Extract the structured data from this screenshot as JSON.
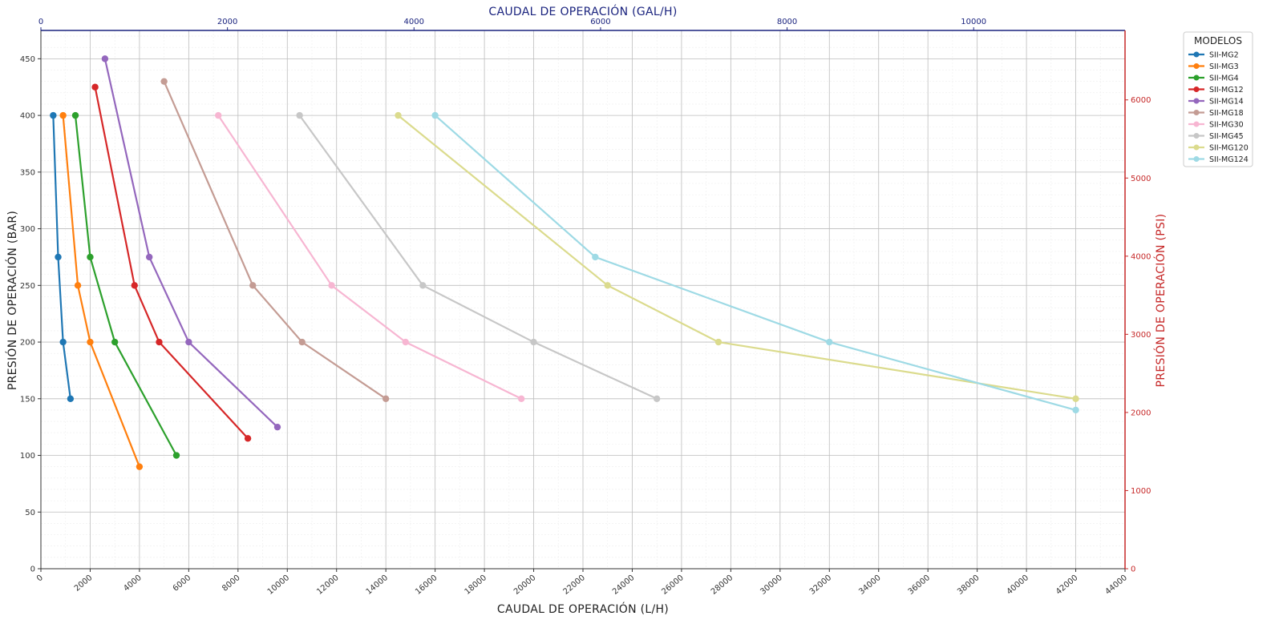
{
  "chart_data": {
    "type": "line",
    "xlabel": "CAUDAL DE OPERACIÓN (L/H)",
    "ylabel": "PRESIÓN DE OPERACIÓN (BAR)",
    "x2label": "CAUDAL DE OPERACIÓN (GAL/H)",
    "y2label": "PRESIÓN DE OPERACIÓN (PSI)",
    "xlim": [
      0,
      44000
    ],
    "ylim": [
      0,
      475
    ],
    "x2lim": [
      0,
      11623
    ],
    "y2lim": [
      0,
      6889
    ],
    "x_ticks": [
      0,
      2000,
      4000,
      6000,
      8000,
      10000,
      12000,
      14000,
      16000,
      18000,
      20000,
      22000,
      24000,
      26000,
      28000,
      30000,
      32000,
      34000,
      36000,
      38000,
      40000,
      42000,
      44000
    ],
    "y_ticks": [
      0,
      50,
      100,
      150,
      200,
      250,
      300,
      350,
      400,
      450
    ],
    "x2_ticks": [
      0,
      2000,
      4000,
      6000,
      8000,
      10000
    ],
    "y2_ticks": [
      0,
      1000,
      2000,
      3000,
      4000,
      5000,
      6000
    ],
    "grid": true,
    "legend": {
      "title": "MODELOS",
      "placement": "outside-right-top"
    },
    "series": [
      {
        "name": "SII-MG2",
        "color": "#1f77b4",
        "points": [
          [
            500,
            400
          ],
          [
            700,
            275
          ],
          [
            900,
            200
          ],
          [
            1200,
            150
          ]
        ]
      },
      {
        "name": "SII-MG3",
        "color": "#ff7f0e",
        "points": [
          [
            900,
            400
          ],
          [
            1500,
            250
          ],
          [
            2000,
            200
          ],
          [
            4000,
            90
          ]
        ]
      },
      {
        "name": "SII-MG4",
        "color": "#2ca02c",
        "points": [
          [
            1400,
            400
          ],
          [
            2000,
            275
          ],
          [
            3000,
            200
          ],
          [
            5500,
            100
          ]
        ]
      },
      {
        "name": "SII-MG12",
        "color": "#d62728",
        "points": [
          [
            2200,
            425
          ],
          [
            3800,
            250
          ],
          [
            4800,
            200
          ],
          [
            8400,
            115
          ]
        ]
      },
      {
        "name": "SII-MG14",
        "color": "#9467bd",
        "points": [
          [
            2600,
            450
          ],
          [
            4400,
            275
          ],
          [
            6000,
            200
          ],
          [
            9600,
            125
          ]
        ]
      },
      {
        "name": "SII-MG18",
        "color": "#c49c94",
        "points": [
          [
            5000,
            430
          ],
          [
            8600,
            250
          ],
          [
            10600,
            200
          ],
          [
            14000,
            150
          ]
        ]
      },
      {
        "name": "SII-MG30",
        "color": "#f7b6d2",
        "points": [
          [
            7200,
            400
          ],
          [
            11800,
            250
          ],
          [
            14800,
            200
          ],
          [
            19500,
            150
          ]
        ]
      },
      {
        "name": "SII-MG45",
        "color": "#c7c7c7",
        "points": [
          [
            10500,
            400
          ],
          [
            15500,
            250
          ],
          [
            20000,
            200
          ],
          [
            25000,
            150
          ]
        ]
      },
      {
        "name": "SII-MG120",
        "color": "#dbdb8d",
        "points": [
          [
            14500,
            400
          ],
          [
            23000,
            250
          ],
          [
            27500,
            200
          ],
          [
            42000,
            150
          ]
        ]
      },
      {
        "name": "SII-MG124",
        "color": "#9edae5",
        "points": [
          [
            16000,
            400
          ],
          [
            22500,
            275
          ],
          [
            32000,
            200
          ],
          [
            42000,
            140
          ]
        ]
      }
    ]
  }
}
